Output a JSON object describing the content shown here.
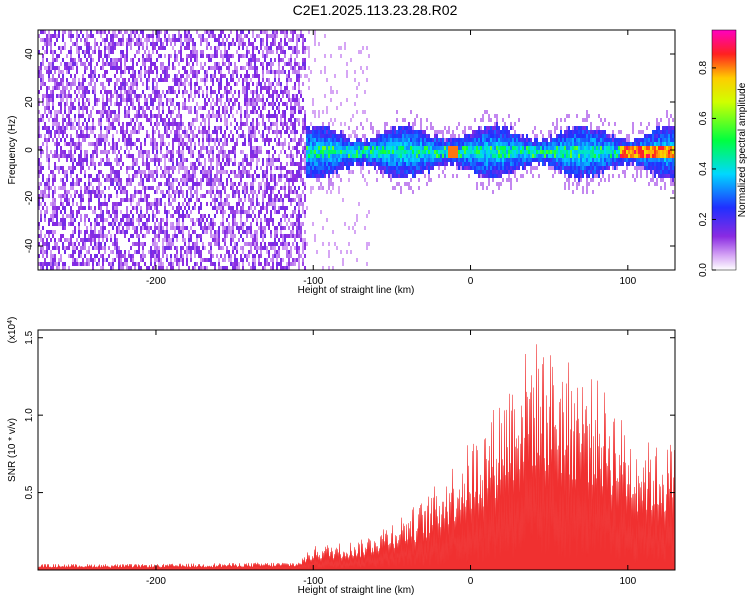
{
  "title": "C2E1.2025.113.23.28.R02",
  "chart_data": [
    {
      "type": "heatmap",
      "xlabel": "Height of straight line (km)",
      "ylabel": "Frequency (Hz)",
      "xlim": [
        -275,
        130
      ],
      "ylim": [
        -50,
        50
      ],
      "x_ticks": [
        -200,
        -100,
        0,
        100
      ],
      "y_ticks": [
        -40,
        -20,
        0,
        20,
        40
      ],
      "colorbar": {
        "label": "Normalized spectral amplitude",
        "range": [
          0,
          0.95
        ],
        "ticks": [
          "0.0",
          "0.2",
          "0.4",
          "0.6",
          "0.8"
        ],
        "colormap": "rainbow (white-violet-blue-cyan-green-yellow-red)"
      },
      "description_regions": [
        {
          "x": [
            -275,
            -105
          ],
          "y": [
            -50,
            50
          ],
          "amplitude": 0.05
        },
        {
          "x": [
            -105,
            130
          ],
          "y": [
            -8,
            8
          ],
          "amplitude": 0.35
        },
        {
          "x": [
            100,
            130
          ],
          "y": [
            -2,
            2
          ],
          "amplitude": 0.9
        }
      ]
    },
    {
      "type": "area",
      "xlabel": "Height of straight line (km)",
      "ylabel": "SNR (10 * v/v)",
      "y_multiplier": "(x10^4)",
      "xlim": [
        -275,
        130
      ],
      "ylim": [
        0,
        15500
      ],
      "x_ticks": [
        -200,
        -100,
        0,
        100
      ],
      "y_ticks": [
        "0.5",
        "1.0",
        "1.5"
      ],
      "color": "#f03030",
      "series": [
        {
          "x": [
            -275,
            -200,
            -110,
            -100,
            -70,
            -50,
            -30,
            -20,
            -10,
            0,
            10,
            20,
            30,
            40,
            50,
            60,
            70,
            80,
            90,
            100,
            110,
            120,
            130
          ],
          "y": [
            300,
            300,
            400,
            1200,
            1500,
            2500,
            3500,
            4500,
            5500,
            6500,
            7500,
            9000,
            10500,
            11500,
            11000,
            10500,
            10000,
            9500,
            8500,
            7000,
            6500,
            6200,
            6500
          ]
        }
      ]
    }
  ]
}
